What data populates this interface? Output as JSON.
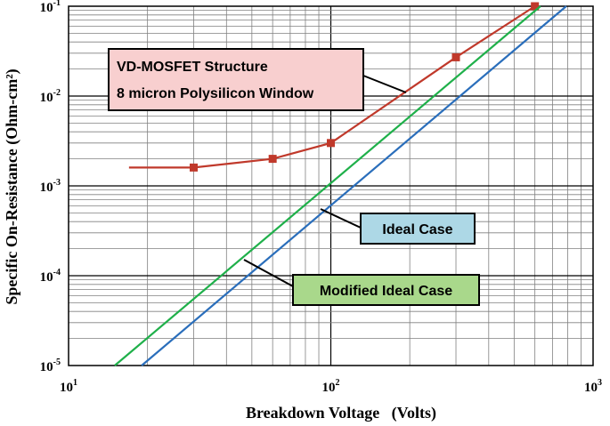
{
  "chart_data": {
    "type": "line",
    "x_scale": "log",
    "y_scale": "log",
    "xlim": [
      10,
      1000
    ],
    "ylim": [
      1e-05,
      0.1
    ],
    "grid": true,
    "xlabel": "Breakdown Voltage   (Volts)",
    "ylabel": "Specific On-Resistance  (Ohm-cm²)",
    "x_ticks": [
      {
        "base": "10",
        "exp": "1"
      },
      {
        "base": "10",
        "exp": "2"
      },
      {
        "base": "10",
        "exp": "3"
      }
    ],
    "y_ticks": [
      {
        "base": "10",
        "exp": "-5"
      },
      {
        "base": "10",
        "exp": "-4"
      },
      {
        "base": "10",
        "exp": "-3"
      },
      {
        "base": "10",
        "exp": "-2"
      },
      {
        "base": "10",
        "exp": "-1"
      }
    ],
    "series": [
      {
        "name": "VD-MOSFET Structure",
        "color": "#c0392b",
        "marker": "square",
        "points": [
          [
            17,
            0.0016
          ],
          [
            30,
            0.0016
          ],
          [
            60,
            0.002
          ],
          [
            100,
            0.003
          ],
          [
            300,
            0.027
          ],
          [
            600,
            0.1
          ]
        ],
        "marked_indices": [
          1,
          2,
          3,
          4,
          5
        ]
      },
      {
        "name": "Modified Ideal Case",
        "color": "#1fb04a",
        "marker": "none",
        "points": [
          [
            15,
            1e-05
          ],
          [
            630,
            0.1
          ]
        ]
      },
      {
        "name": "Ideal Case",
        "color": "#2a6ebb",
        "marker": "none",
        "points": [
          [
            19,
            1e-05
          ],
          [
            790,
            0.1
          ]
        ]
      }
    ],
    "annotations": [
      {
        "lines": [
          "VD-MOSFET Structure",
          "8 micron Polysilicon Window"
        ],
        "fill": "#f8cfcf",
        "series": "VD-MOSFET Structure"
      },
      {
        "lines": [
          "Ideal Case"
        ],
        "fill": "#add8e6",
        "series": "Ideal Case"
      },
      {
        "lines": [
          "Modified Ideal Case"
        ],
        "fill": "#a9d88b",
        "series": "Modified Ideal Case"
      }
    ]
  }
}
